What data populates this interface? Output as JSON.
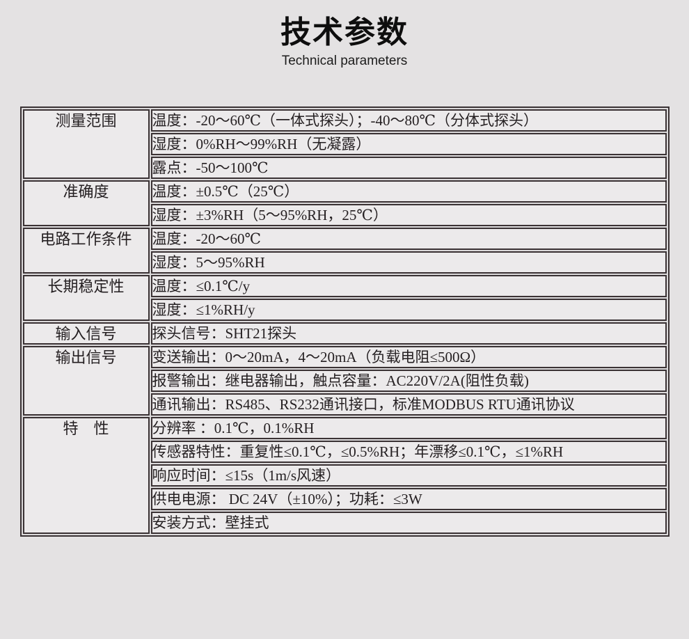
{
  "header": {
    "title": "技术参数",
    "subtitle": "Technical parameters"
  },
  "colors": {
    "page_background": "#e4e2e3",
    "cell_background": "#eceaeb",
    "border": "#3a3234",
    "text": "#241f21"
  },
  "table": {
    "groups": [
      {
        "label": "测量范围",
        "rows": [
          "温度：-20～60℃（一体式探头）；-40～80℃（分体式探头）",
          "湿度：0%RH～99%RH（无凝露）",
          "露点：-50～100℃"
        ]
      },
      {
        "label": "准确度",
        "rows": [
          "温度：±0.5℃（25℃）",
          "湿度：±3%RH（5～95%RH，25℃）"
        ]
      },
      {
        "label": "电路工作条件",
        "rows": [
          "温度：-20～60℃",
          "湿度：5～95%RH"
        ]
      },
      {
        "label": "长期稳定性",
        "rows": [
          "温度：≤0.1℃/y",
          "湿度：≤1%RH/y"
        ]
      },
      {
        "label": "输入信号",
        "rows": [
          "探头信号：SHT21探头"
        ]
      },
      {
        "label": "输出信号",
        "rows": [
          "变送输出：0～20mA，4～20mA（负载电阻≤500Ω）",
          "报警输出：继电器输出，触点容量：AC220V/2A(阻性负载)",
          "通讯输出：RS485、RS232通讯接口，标准MODBUS RTU通讯协议"
        ]
      },
      {
        "label": "特　性",
        "rows": [
          "分辨率 ：0.1℃，0.1%RH",
          "传感器特性：重复性≤0.1℃，≤0.5%RH；年漂移≤0.1℃，≤1%RH",
          "响应时间：≤15s（1m/s风速）",
          "供电电源： DC 24V（±10%）；功耗：≤3W",
          "安装方式：壁挂式"
        ]
      }
    ]
  }
}
